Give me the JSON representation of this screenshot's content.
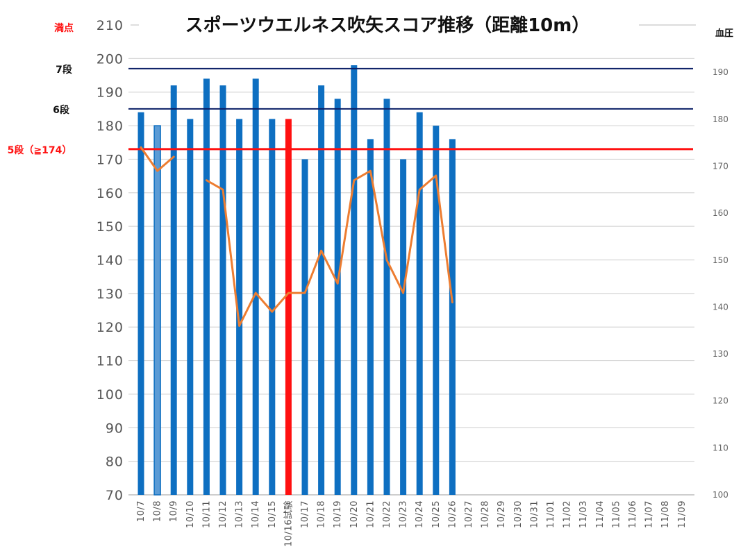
{
  "chart_data": {
    "type": "bar",
    "title": "スポーツウエルネス吹矢スコア推移（距離10m）",
    "categories": [
      "10/7",
      "10/8",
      "10/9",
      "10/10",
      "10/11",
      "10/12",
      "10/13",
      "10/14",
      "10/15",
      "10/16試験",
      "10/17",
      "10/18",
      "10/19",
      "10/20",
      "10/21",
      "10/22",
      "10/23",
      "10/24",
      "10/25",
      "10/26",
      "10/27",
      "10/28",
      "10/29",
      "10/30",
      "10/31",
      "11/01",
      "11/02",
      "11/03",
      "11/04",
      "11/05",
      "11/06",
      "11/07",
      "11/08",
      "11/09"
    ],
    "ylim": [
      70,
      210
    ],
    "y_ticks": [
      70,
      80,
      90,
      100,
      110,
      120,
      130,
      140,
      150,
      160,
      170,
      180,
      190,
      200,
      210
    ],
    "y2_label": "血圧",
    "y2lim": [
      100,
      200
    ],
    "y2_ticks": [
      100,
      110,
      120,
      130,
      140,
      150,
      160,
      170,
      180,
      190
    ],
    "series": [
      {
        "type": "bar",
        "values": [
          184,
          180,
          192,
          182,
          194,
          192,
          182,
          194,
          182,
          182,
          170,
          192,
          188,
          198,
          176,
          188,
          170,
          184,
          180,
          176,
          null,
          null,
          null,
          null,
          null,
          null,
          null,
          null,
          null,
          null,
          null,
          null,
          null,
          null
        ],
        "color": "#0e6fc1",
        "highlight_index": 9,
        "highlight_color": "#ff1010",
        "light_index": 1,
        "light_color": "#5b9bd5"
      },
      {
        "type": "line",
        "axis": "right",
        "values": [
          174,
          169,
          172,
          null,
          167,
          165,
          136,
          143,
          139,
          143,
          143,
          152,
          145,
          167,
          169,
          150,
          143,
          165,
          168,
          141,
          null,
          null,
          null,
          null,
          null,
          null,
          null,
          null,
          null,
          null,
          null,
          null,
          null,
          null
        ],
        "color": "#ed7d31"
      }
    ],
    "reference_lines": [
      {
        "label": "満点",
        "value": 210,
        "color": "#ff1010"
      },
      {
        "label": "7段",
        "value": 197,
        "color": "#0b1f66"
      },
      {
        "label": "6段",
        "value": 185,
        "color": "#0b1f66"
      },
      {
        "label": "5段（≧174）",
        "value": 173,
        "color": "#ff1010"
      }
    ],
    "grid": true
  }
}
